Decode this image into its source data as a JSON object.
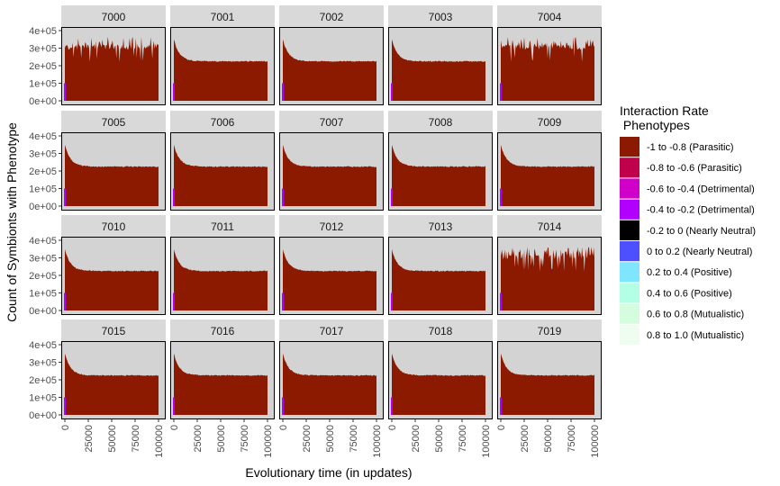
{
  "chart_data": {
    "type": "area",
    "facet_by": "seed",
    "panels": [
      "7000",
      "7001",
      "7002",
      "7003",
      "7004",
      "7005",
      "7006",
      "7007",
      "7008",
      "7009",
      "7010",
      "7011",
      "7012",
      "7013",
      "7014",
      "7015",
      "7016",
      "7017",
      "7018",
      "7019"
    ],
    "spiky_panels": [
      "7000",
      "7004",
      "7014"
    ],
    "panel_pattern": {
      "typical": {
        "start": 350000,
        "plateau": 225000,
        "series": "-1 to -0.8 (Parasitic)"
      },
      "spiky": {
        "baseline": 290000,
        "spike_max": 365000,
        "series": "-1 to -0.8 (Parasitic)"
      }
    },
    "xlabel": "Evolutionary time (in updates)",
    "ylabel": "Count of Symbionts with Phenotype",
    "xlim": [
      0,
      100000
    ],
    "ylim": [
      0,
      400000
    ],
    "x_ticks": [
      0,
      25000,
      50000,
      75000,
      100000
    ],
    "x_tick_labels": [
      "0",
      "25000",
      "50000",
      "75000",
      "100000"
    ],
    "y_ticks": [
      0,
      100000,
      200000,
      300000,
      400000
    ],
    "y_tick_labels": [
      "0e+00",
      "1e+05",
      "2e+05",
      "3e+05",
      "4e+05"
    ],
    "legend": {
      "title_line1": "Interaction Rate",
      "title_line2": " Phenotypes",
      "position": "right",
      "entries": [
        {
          "label": "-1 to -0.8 (Parasitic)",
          "color": "#8B1A00"
        },
        {
          "label": "-0.8 to -0.6 (Parasitic)",
          "color": "#C0004A"
        },
        {
          "label": "-0.6 to -0.4 (Detrimental)",
          "color": "#D100C9"
        },
        {
          "label": "-0.4 to -0.2 (Detrimental)",
          "color": "#B200FF"
        },
        {
          "label": "-0.2 to 0 (Nearly Neutral)",
          "color": "#000000"
        },
        {
          "label": "0 to 0.2 (Nearly Neutral)",
          "color": "#4D50FF"
        },
        {
          "label": "0.2 to 0.4 (Positive)",
          "color": "#80E6FF"
        },
        {
          "label": "0.4 to 0.6 (Positive)",
          "color": "#B3FFE6"
        },
        {
          "label": "0.6 to 0.8 (Mutualistic)",
          "color": "#D6FCE0"
        },
        {
          "label": "0.8 to 1.0 (Mutualistic)",
          "color": "#EEFDF0"
        }
      ]
    }
  },
  "colors": {
    "panel_background": "#D3D3D3",
    "strip_background": "#D9D9D9",
    "main_series": "#8B1A00",
    "minor_series": "#B200FF"
  }
}
